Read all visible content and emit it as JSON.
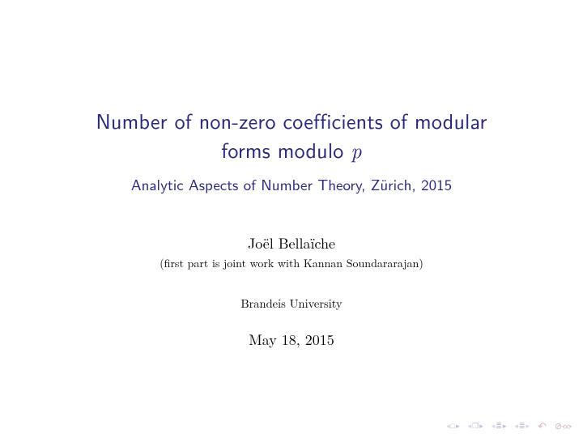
{
  "title_line1": "Number of non-zero coefficients of modular",
  "title_line2_prefix": "forms modulo ",
  "title_line2_p": "p",
  "subtitle": "Analytic Aspects of Number Theory, Zürich, 2015",
  "author": "Joël Bellaïche",
  "note": "(first part is joint work with Kannan Soundararajan)",
  "institute": "Brandeis University",
  "date": "May 18, 2015",
  "colors": {
    "title_color": "#29287a",
    "text_color": "#000000",
    "background": "#ffffff",
    "nav_color": "#bfbfd8",
    "nav_dim": "#d6d6e6",
    "nav_red": "#d8b8b8"
  },
  "nav": {
    "first": "◂ □ ▸",
    "frame": "◂ ❐ ▸",
    "sub1": "◂ ≡ ▸",
    "sub2": "◂ ≡ ▸",
    "back": "↶",
    "undo": "⥀⥁"
  }
}
